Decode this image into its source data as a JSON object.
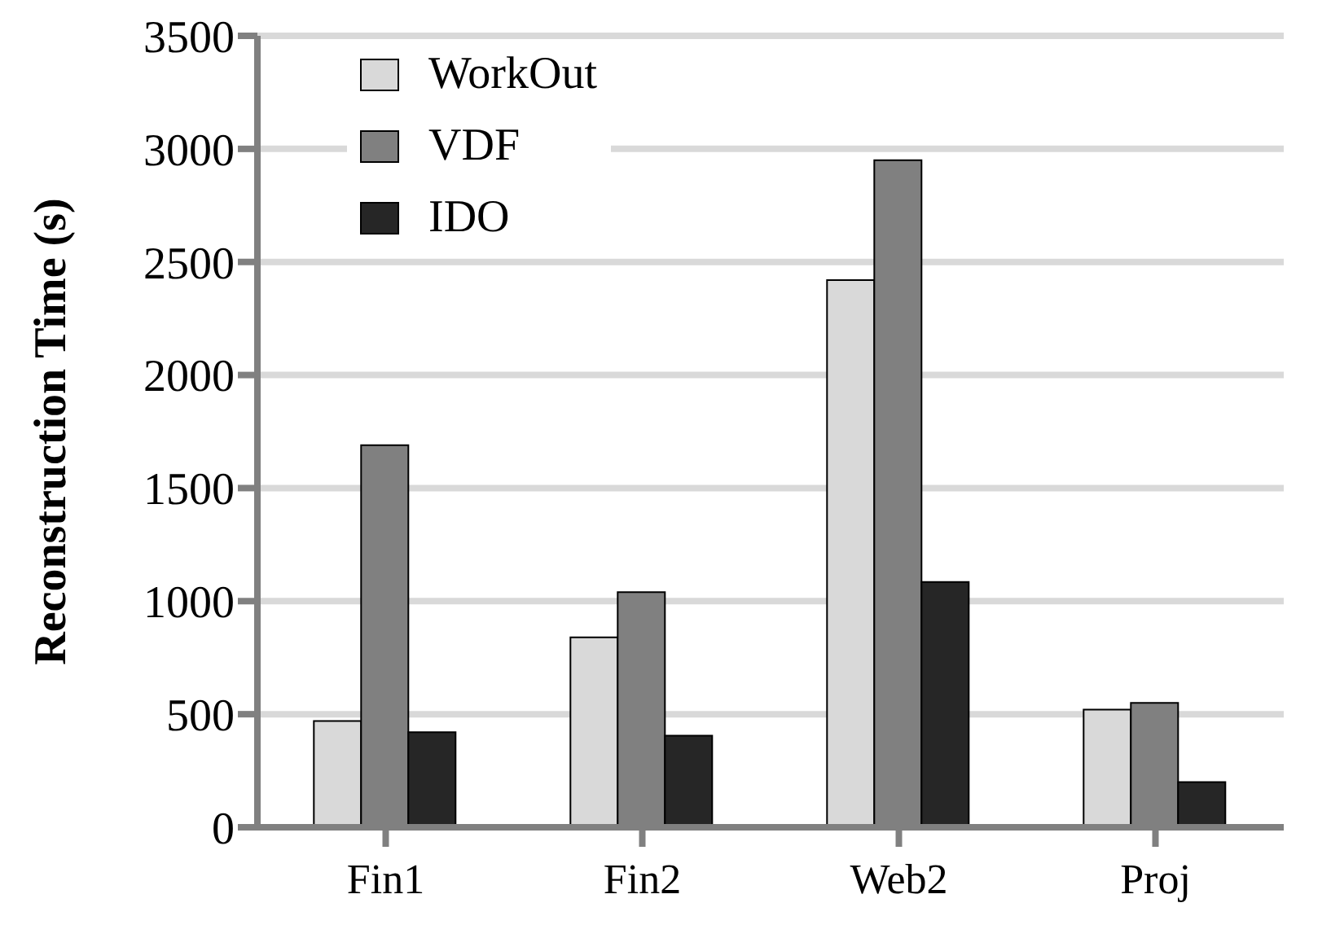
{
  "chart_data": {
    "type": "bar",
    "ylabel": "Reconstruction Time (s)",
    "categories": [
      "Fin1",
      "Fin2",
      "Web2",
      "Proj"
    ],
    "series": [
      {
        "name": "WorkOut",
        "color": "#d9d9d9",
        "values": [
          470,
          840,
          2420,
          520
        ]
      },
      {
        "name": "VDF",
        "color": "#808080",
        "values": [
          1690,
          1040,
          2950,
          550
        ]
      },
      {
        "name": "IDO",
        "color": "#262626",
        "values": [
          420,
          405,
          1085,
          200
        ]
      }
    ],
    "ylim": [
      0,
      3500
    ],
    "yticks": [
      0,
      500,
      1000,
      1500,
      2000,
      2500,
      3000,
      3500
    ],
    "grid": "y",
    "legend": "top left"
  }
}
